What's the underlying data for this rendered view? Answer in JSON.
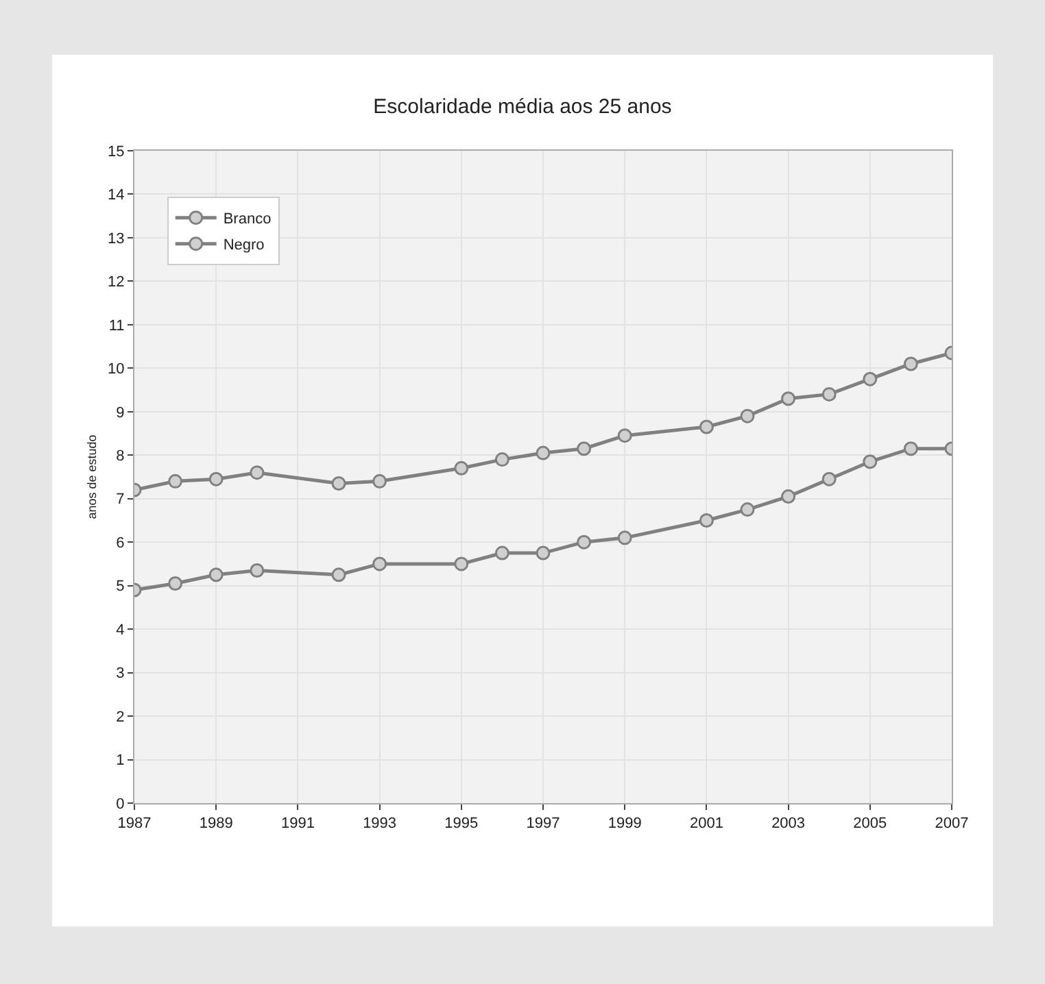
{
  "chart_data": {
    "type": "line",
    "title": "Escolaridade média aos 25 anos",
    "ylabel": "anos de estudo",
    "x": [
      1987,
      1988,
      1989,
      1990,
      1992,
      1993,
      1995,
      1996,
      1997,
      1998,
      1999,
      2001,
      2002,
      2003,
      2004,
      2005,
      2006,
      2007
    ],
    "series": [
      {
        "name": "Branco",
        "color": "#808080",
        "values": [
          7.2,
          7.4,
          7.45,
          7.6,
          7.35,
          7.4,
          7.7,
          7.9,
          8.05,
          8.15,
          8.45,
          8.65,
          8.9,
          9.3,
          9.4,
          9.75,
          10.1,
          10.35
        ]
      },
      {
        "name": "Negro",
        "color": "#808080",
        "values": [
          4.9,
          5.05,
          5.25,
          5.35,
          5.25,
          5.5,
          5.5,
          5.75,
          5.75,
          6.0,
          6.1,
          6.5,
          6.75,
          7.05,
          7.45,
          7.85,
          8.15,
          8.15
        ]
      }
    ],
    "xlim": [
      1987,
      2007
    ],
    "xticks": [
      1987,
      1989,
      1991,
      1993,
      1995,
      1997,
      1999,
      2001,
      2003,
      2005,
      2007
    ],
    "ylim": [
      0,
      15
    ],
    "yticks": [
      0,
      1,
      2,
      3,
      4,
      5,
      6,
      7,
      8,
      9,
      10,
      11,
      12,
      13,
      14,
      15
    ],
    "grid": true,
    "legend": "top left",
    "marker": "circle",
    "line_style": "solid"
  }
}
